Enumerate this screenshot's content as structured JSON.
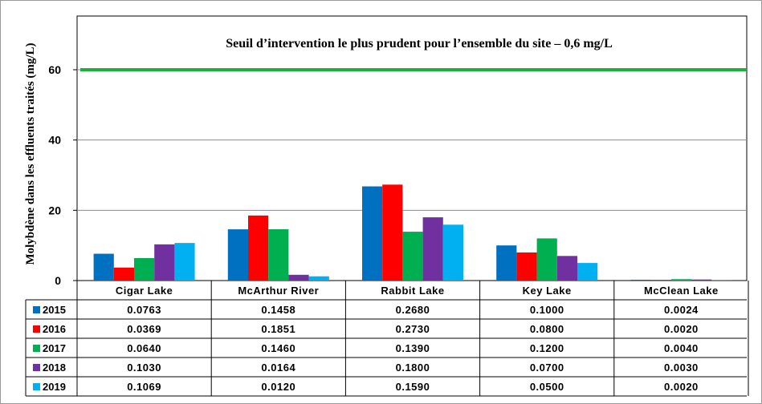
{
  "chart_data": {
    "type": "bar",
    "title": "Seuil d’intervention le plus prudent pour l’ensemble du site – 0,6 mg/L",
    "ylabel": "Molybdène dans les effluents traités (mg/L)",
    "xlabel": "",
    "ylim": [
      0,
      70
    ],
    "yticks": [
      "0",
      "20",
      "40",
      "60"
    ],
    "threshold": 60,
    "categories": [
      "Cigar Lake",
      "McArthur River",
      "Rabbit Lake",
      "Key Lake",
      "McClean Lake"
    ],
    "series": [
      {
        "name": "2015",
        "color": "#0070c0",
        "values": [
          7.63,
          14.58,
          26.8,
          10.0,
          0.24
        ],
        "labels": [
          "0.0763",
          "0.1458",
          "0.2680",
          "0.1000",
          "0.0024"
        ]
      },
      {
        "name": "2016",
        "color": "#ff0000",
        "values": [
          3.69,
          18.51,
          27.3,
          8.0,
          0.2
        ],
        "labels": [
          "0.0369",
          "0.1851",
          "0.2730",
          "0.0800",
          "0.0020"
        ]
      },
      {
        "name": "2017",
        "color": "#00b050",
        "values": [
          6.4,
          14.6,
          13.9,
          12.0,
          0.4
        ],
        "labels": [
          "0.0640",
          "0.1460",
          "0.1390",
          "0.1200",
          "0.0040"
        ]
      },
      {
        "name": "2018",
        "color": "#7030a0",
        "values": [
          10.3,
          1.64,
          18.0,
          7.0,
          0.3
        ],
        "labels": [
          "0.1030",
          "0.0164",
          "0.1800",
          "0.0700",
          "0.0030"
        ]
      },
      {
        "name": "2019",
        "color": "#00b0f0",
        "values": [
          10.69,
          1.2,
          15.9,
          5.0,
          0.2
        ],
        "labels": [
          "0.1069",
          "0.0120",
          "0.1590",
          "0.0500",
          "0.0020"
        ]
      }
    ],
    "threshold_color": "#1faf3b",
    "grid": true,
    "legend": "table"
  }
}
